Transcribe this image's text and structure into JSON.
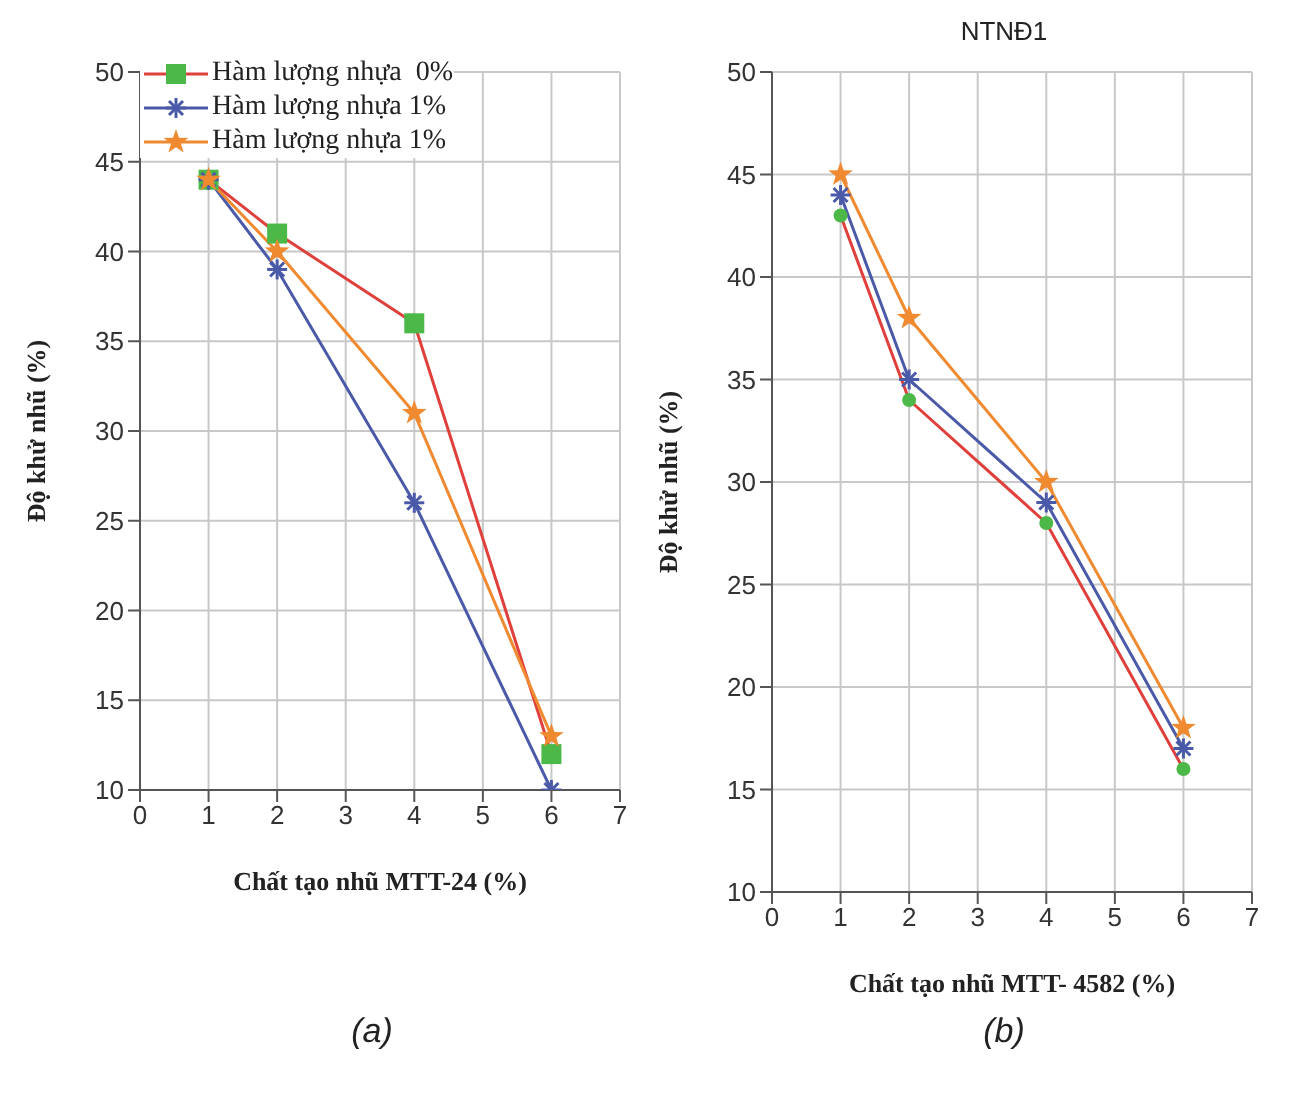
{
  "chart_data": [
    {
      "type": "line",
      "xlabel": "Chất tạo nhũ MTT-24 (%)",
      "ylabel": "Độ khử nhũ (%)",
      "annotations": [
        "(a)"
      ],
      "xlim": [
        0,
        7
      ],
      "xticks": [
        0,
        1,
        2,
        3,
        4,
        5,
        6,
        7
      ],
      "ylim": [
        10,
        50
      ],
      "yticks": [
        10,
        15,
        20,
        25,
        30,
        35,
        40,
        45,
        50
      ],
      "grid": true,
      "legend": "top left",
      "line_style": "solid",
      "x": [
        1,
        2,
        4,
        6
      ],
      "series": [
        {
          "name": "Hàm lượng nhựa  0%",
          "color": "#e0403c",
          "colors": [
            "#4cb848",
            "#4cb848",
            "#4cb848",
            "#4cb848"
          ],
          "marker": "square",
          "values": [
            44,
            41,
            36,
            12
          ]
        },
        {
          "name": "Hàm lượng nhựa 1%",
          "color": "#4a5aa8",
          "marker": "cross",
          "values": [
            44,
            39,
            26,
            10
          ]
        },
        {
          "name": "Hàm lượng nhựa 1%",
          "color": "#f08a30",
          "marker": "star",
          "values": [
            44,
            40,
            31,
            13
          ]
        }
      ]
    },
    {
      "type": "line",
      "title": "NTNĐ1",
      "xlabel": "Chất tạo nhũ MTT- 4582 (%)",
      "ylabel": "Độ khử nhũ (%)",
      "annotations": [
        "(b)"
      ],
      "xlim": [
        0,
        7
      ],
      "xticks": [
        0,
        1,
        2,
        3,
        4,
        5,
        6,
        7
      ],
      "ylim": [
        10,
        50
      ],
      "yticks": [
        10,
        15,
        20,
        25,
        30,
        35,
        40,
        45,
        50
      ],
      "grid": true,
      "line_style": "solid",
      "x": [
        1,
        2,
        4,
        6
      ],
      "series": [
        {
          "color": "#e0403c",
          "colors": [
            "#4cb848",
            "#4cb848",
            "#4cb848",
            "#4cb848"
          ],
          "marker": "circle",
          "values": [
            43,
            34,
            28,
            16
          ]
        },
        {
          "color": "#4a5aa8",
          "marker": "cross",
          "values": [
            44,
            35,
            29,
            17
          ]
        },
        {
          "color": "#f08a30",
          "marker": "star",
          "values": [
            45,
            38,
            30,
            18
          ]
        }
      ]
    }
  ]
}
